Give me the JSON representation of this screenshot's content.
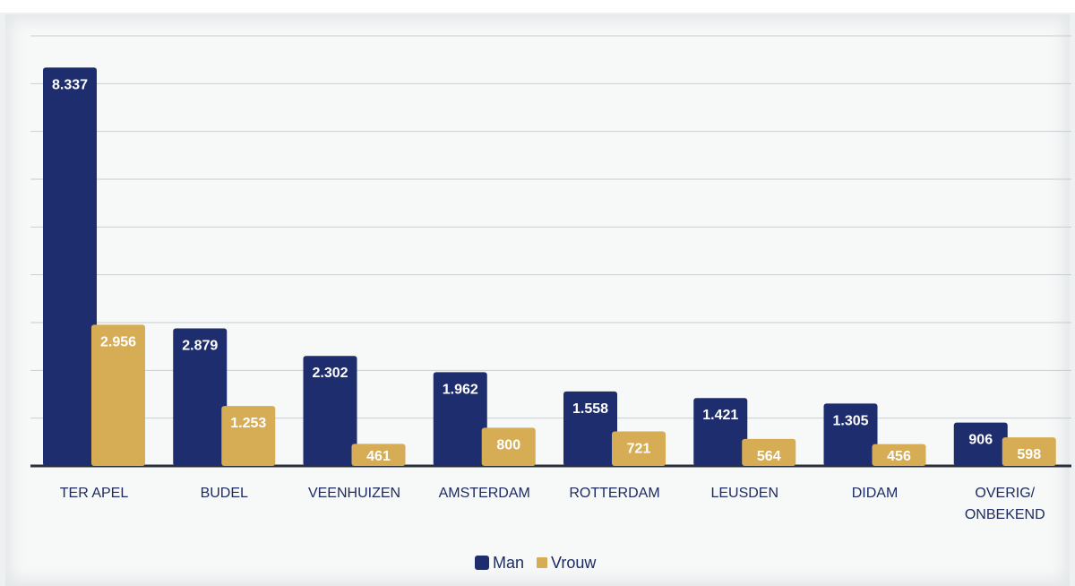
{
  "header": {
    "caption_fragment": ""
  },
  "chart_data": {
    "type": "bar",
    "categories": [
      "TER APEL",
      "BUDEL",
      "VEENHUIZEN",
      "AMSTERDAM",
      "ROTTERDAM",
      "LEUSDEN",
      "DIDAM",
      "OVERIG/ ONBEKEND"
    ],
    "series": [
      {
        "name": "Man",
        "color": "#1d2d6e",
        "values": [
          8337,
          2879,
          2302,
          1962,
          1558,
          1421,
          1305,
          906
        ],
        "labels": [
          "8.337",
          "2.879",
          "2.302",
          "1.962",
          "1.558",
          "1.421",
          "1.305",
          "906"
        ]
      },
      {
        "name": "Vrouw",
        "color": "#d6ad55",
        "values": [
          2956,
          1253,
          461,
          800,
          721,
          564,
          456,
          598
        ],
        "labels": [
          "2.956",
          "1.253",
          "461",
          "800",
          "721",
          "564",
          "456",
          "598"
        ]
      }
    ],
    "ylim": [
      0,
      9000
    ],
    "grid": true,
    "legend": "bottom-center",
    "title": "",
    "xlabel": "",
    "ylabel": ""
  }
}
